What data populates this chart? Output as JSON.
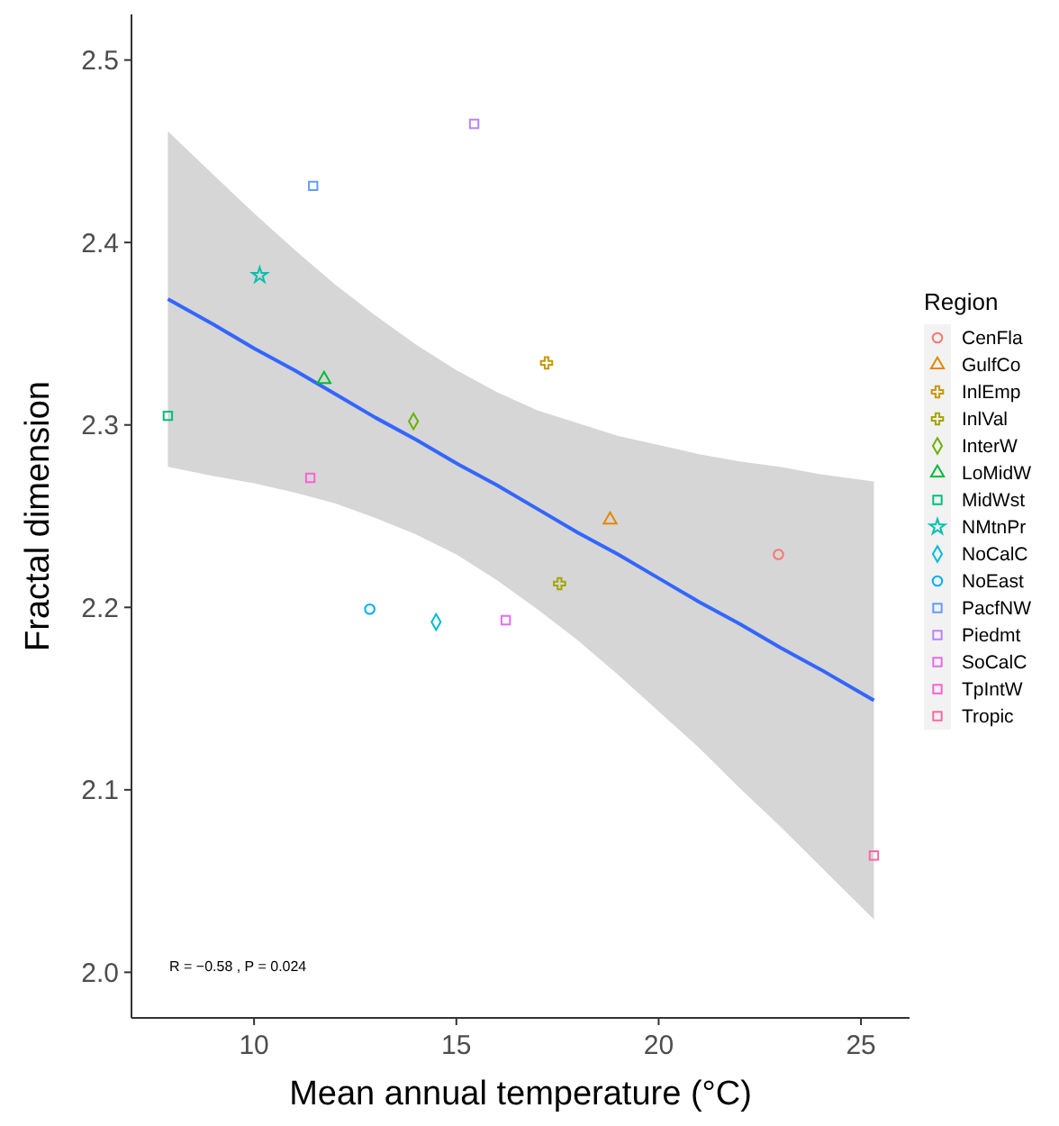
{
  "chart_data": {
    "type": "scatter",
    "xlabel": "Mean annual temperature (°C)",
    "ylabel": "Fractal dimension",
    "legend_title": "Region",
    "legend": "right",
    "grid": false,
    "xlim": [
      6.97,
      26.2
    ],
    "xticks": [
      10,
      15,
      20,
      25
    ],
    "ylim": [
      1.975,
      2.525
    ],
    "yticks": [
      {
        "value": 2,
        "label": "2.0"
      },
      2.1,
      2.2,
      2.3,
      2.4,
      2.5
    ],
    "annotations": [
      "R = −0.58 , P = 0.024"
    ],
    "series": [
      {
        "name": "CenFla",
        "color": "#F8766D",
        "marker": "circle",
        "x": [
          22.96
        ],
        "values": [
          2.229
        ]
      },
      {
        "name": "GulfCo",
        "color": "#E58700",
        "marker": "triangle",
        "x": [
          18.8
        ],
        "values": [
          2.248
        ]
      },
      {
        "name": "InlEmp",
        "color": "#C99800",
        "marker": "cross",
        "x": [
          17.23
        ],
        "values": [
          2.334
        ]
      },
      {
        "name": "InlVal",
        "color": "#A3A500",
        "marker": "cross",
        "x": [
          17.55
        ],
        "values": [
          2.213
        ]
      },
      {
        "name": "InterW",
        "color": "#6BB100",
        "marker": "diamond",
        "x": [
          13.94
        ],
        "values": [
          2.302
        ]
      },
      {
        "name": "LoMidW",
        "color": "#00BA38",
        "marker": "triangle",
        "x": [
          11.73
        ],
        "values": [
          2.325
        ]
      },
      {
        "name": "MidWst",
        "color": "#00BF7D",
        "marker": "square",
        "x": [
          7.87
        ],
        "values": [
          2.305
        ]
      },
      {
        "name": "NMtnPr",
        "color": "#00C0AF",
        "marker": "star",
        "x": [
          10.14
        ],
        "values": [
          2.382
        ]
      },
      {
        "name": "NoCalC",
        "color": "#00BCD8",
        "marker": "diamond",
        "x": [
          14.5
        ],
        "values": [
          2.192
        ]
      },
      {
        "name": "NoEast",
        "color": "#00B0F6",
        "marker": "circle",
        "x": [
          12.86
        ],
        "values": [
          2.199
        ]
      },
      {
        "name": "PacfNW",
        "color": "#619CFF",
        "marker": "square",
        "x": [
          11.46
        ],
        "values": [
          2.431
        ]
      },
      {
        "name": "Piedmt",
        "color": "#B983FF",
        "marker": "square",
        "x": [
          15.44
        ],
        "values": [
          2.465
        ]
      },
      {
        "name": "SoCalC",
        "color": "#E76BF3",
        "marker": "square",
        "x": [
          16.22
        ],
        "values": [
          2.193
        ]
      },
      {
        "name": "TpIntW",
        "color": "#FD61D1",
        "marker": "square",
        "x": [
          11.39
        ],
        "values": [
          2.271
        ]
      },
      {
        "name": "Tropic",
        "color": "#FF67A4",
        "marker": "square",
        "x": [
          25.32
        ],
        "values": [
          2.064
        ]
      },
      {
        "type": "line",
        "color": "#3366FF",
        "x": [
          7.87,
          9,
          10,
          11,
          12,
          13,
          14,
          15,
          16,
          17,
          18,
          19,
          20,
          21,
          22,
          23,
          24,
          25.32
        ],
        "values": [
          2.369,
          2.355,
          2.342,
          2.33,
          2.317,
          2.304,
          2.292,
          2.279,
          2.267,
          2.254,
          2.241,
          2.229,
          2.216,
          2.203,
          2.191,
          2.178,
          2.166,
          2.149
        ],
        "lower": [
          2.277,
          2.272,
          2.268,
          2.263,
          2.257,
          2.249,
          2.24,
          2.229,
          2.215,
          2.199,
          2.182,
          2.163,
          2.143,
          2.123,
          2.101,
          2.08,
          2.058,
          2.029
        ],
        "upper": [
          2.461,
          2.437,
          2.416,
          2.396,
          2.377,
          2.36,
          2.344,
          2.33,
          2.318,
          2.308,
          2.301,
          2.294,
          2.289,
          2.284,
          2.28,
          2.277,
          2.273,
          2.269
        ]
      }
    ]
  }
}
